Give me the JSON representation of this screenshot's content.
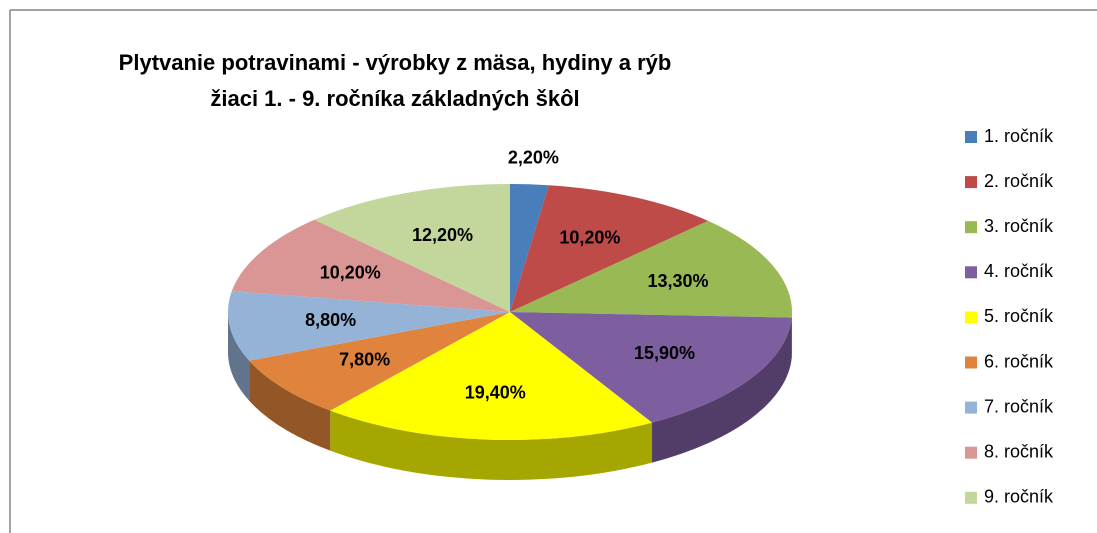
{
  "chart_data": {
    "type": "pie",
    "title": [
      "Plytvanie potravinami - výrobky z mäsa, hydiny a rýb",
      "žiaci 1. - 9. ročníka základných škôl"
    ],
    "categories": [
      "1. ročník",
      "2. ročník",
      "3. ročník",
      "4. ročník",
      "5. ročník",
      "6. ročník",
      "7. ročník",
      "8. ročník",
      "9. ročník"
    ],
    "values": [
      2.2,
      10.2,
      13.3,
      15.9,
      19.4,
      7.8,
      8.8,
      10.2,
      12.2
    ],
    "value_labels": [
      "2,20%",
      "10,20%",
      "13,30%",
      "15,90%",
      "19,40%",
      "7,80%",
      "8,80%",
      "10,20%",
      "12,20%"
    ],
    "colors": [
      "#4a7ebb",
      "#be4b48",
      "#98b954",
      "#7d5fa0",
      "#ffff00",
      "#e0843d",
      "#95b3d7",
      "#d99694",
      "#c3d69b"
    ],
    "legend": "right"
  }
}
